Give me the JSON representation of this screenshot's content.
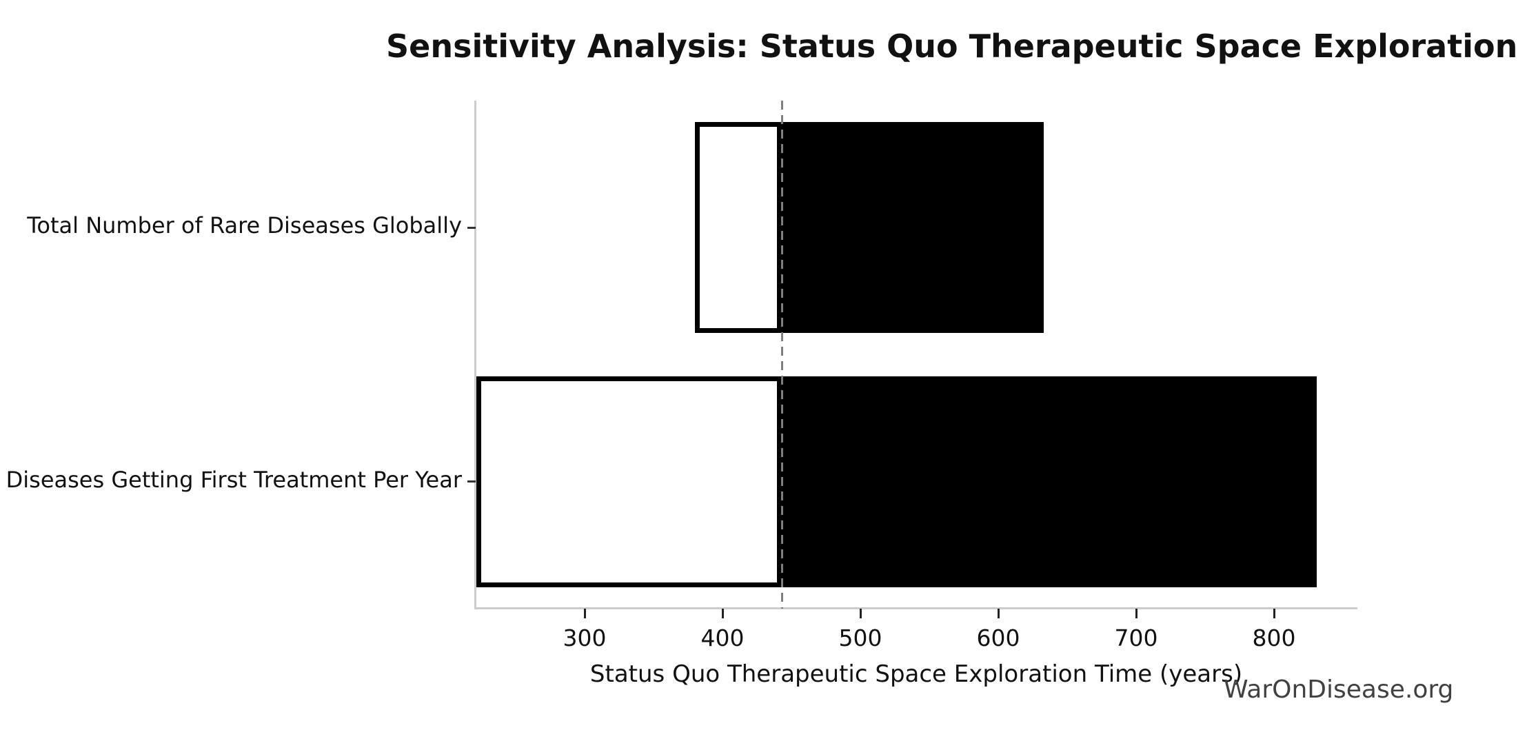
{
  "title": "Sensitivity Analysis: Status Quo Therapeutic Space Exploration Time",
  "watermark": "WarOnDisease.org",
  "chart_data": {
    "type": "bar",
    "subtype": "tornado-sensitivity-horizontal",
    "title": "Sensitivity Analysis: Status Quo Therapeutic Space Exploration Time",
    "xlabel": "Status Quo Therapeutic Space Exploration Time (years)",
    "ylabel": "",
    "xlim": [
      221,
      860
    ],
    "xticks": [
      300,
      400,
      500,
      600,
      700,
      800
    ],
    "grid": false,
    "legend": null,
    "base_value": 443,
    "baseline_style": "dashed-gray-vertical",
    "categories": [
      "Total Number of Rare Diseases Globally",
      "Diseases Getting First Treatment Per Year"
    ],
    "bars": [
      {
        "label": "Total Number of Rare Diseases Globally",
        "low": 380,
        "high": 633
      },
      {
        "label": "Diseases Getting First Treatment Per Year",
        "low": 221.5,
        "high": 831
      }
    ],
    "colors": {
      "low_side_fill": "#ffffff",
      "high_side_fill": "#000000",
      "bar_edge": "#000000",
      "baseline": "#7f7f7f",
      "spine": "#cccccc",
      "text": "#111111",
      "watermark": "#414141"
    }
  }
}
